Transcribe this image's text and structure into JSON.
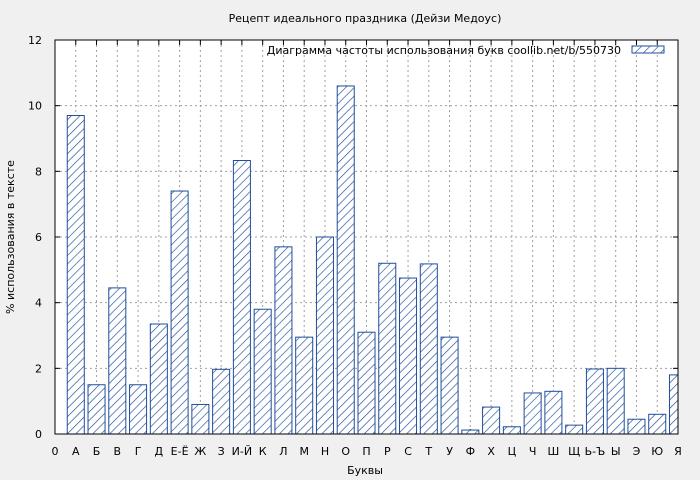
{
  "chart_data": {
    "type": "bar",
    "title": "Рецепт идеального праздника (Дейзи Медоус)",
    "xlabel": "Буквы",
    "ylabel": "% использования в тексте",
    "ylim": [
      0,
      12
    ],
    "yticks": [
      "0",
      "2",
      "4",
      "6",
      "8",
      "10",
      "12"
    ],
    "grid": true,
    "legend": {
      "position": "top-right",
      "label": "Диаграмма частоты использования букв  coollib.net/b/550730"
    },
    "bar_color": "#1f4e9c",
    "bar_pattern": "diagonal-hatch",
    "x_tick_labels": [
      "0",
      "А",
      "Б",
      "В",
      "Г",
      "Д",
      "Е-Ё",
      "Ж",
      "З",
      "И-Й",
      "К",
      "Л",
      "М",
      "Н",
      "О",
      "П",
      "Р",
      "С",
      "Т",
      "У",
      "Ф",
      "Х",
      "Ц",
      "Ч",
      "Ш",
      "Щ",
      "Ь-Ъ",
      "Ы",
      "Э",
      "Ю",
      "Я"
    ],
    "categories": [
      "А",
      "Б",
      "В",
      "Г",
      "Д",
      "Е-Ё",
      "Ж",
      "З",
      "И-Й",
      "К",
      "Л",
      "М",
      "Н",
      "О",
      "П",
      "Р",
      "С",
      "Т",
      "У",
      "Ф",
      "Х",
      "Ц",
      "Ч",
      "Ш",
      "Щ",
      "Ь-Ъ",
      "Ы",
      "Э",
      "Ю",
      "Я"
    ],
    "values": [
      9.7,
      1.5,
      4.45,
      1.5,
      3.35,
      7.4,
      0.9,
      1.97,
      8.33,
      3.8,
      5.7,
      2.95,
      6.0,
      10.6,
      3.1,
      5.2,
      4.75,
      5.18,
      2.95,
      0.12,
      0.82,
      0.22,
      1.25,
      1.3,
      0.27,
      1.98,
      2.0,
      0.45,
      0.6,
      1.8
    ]
  }
}
